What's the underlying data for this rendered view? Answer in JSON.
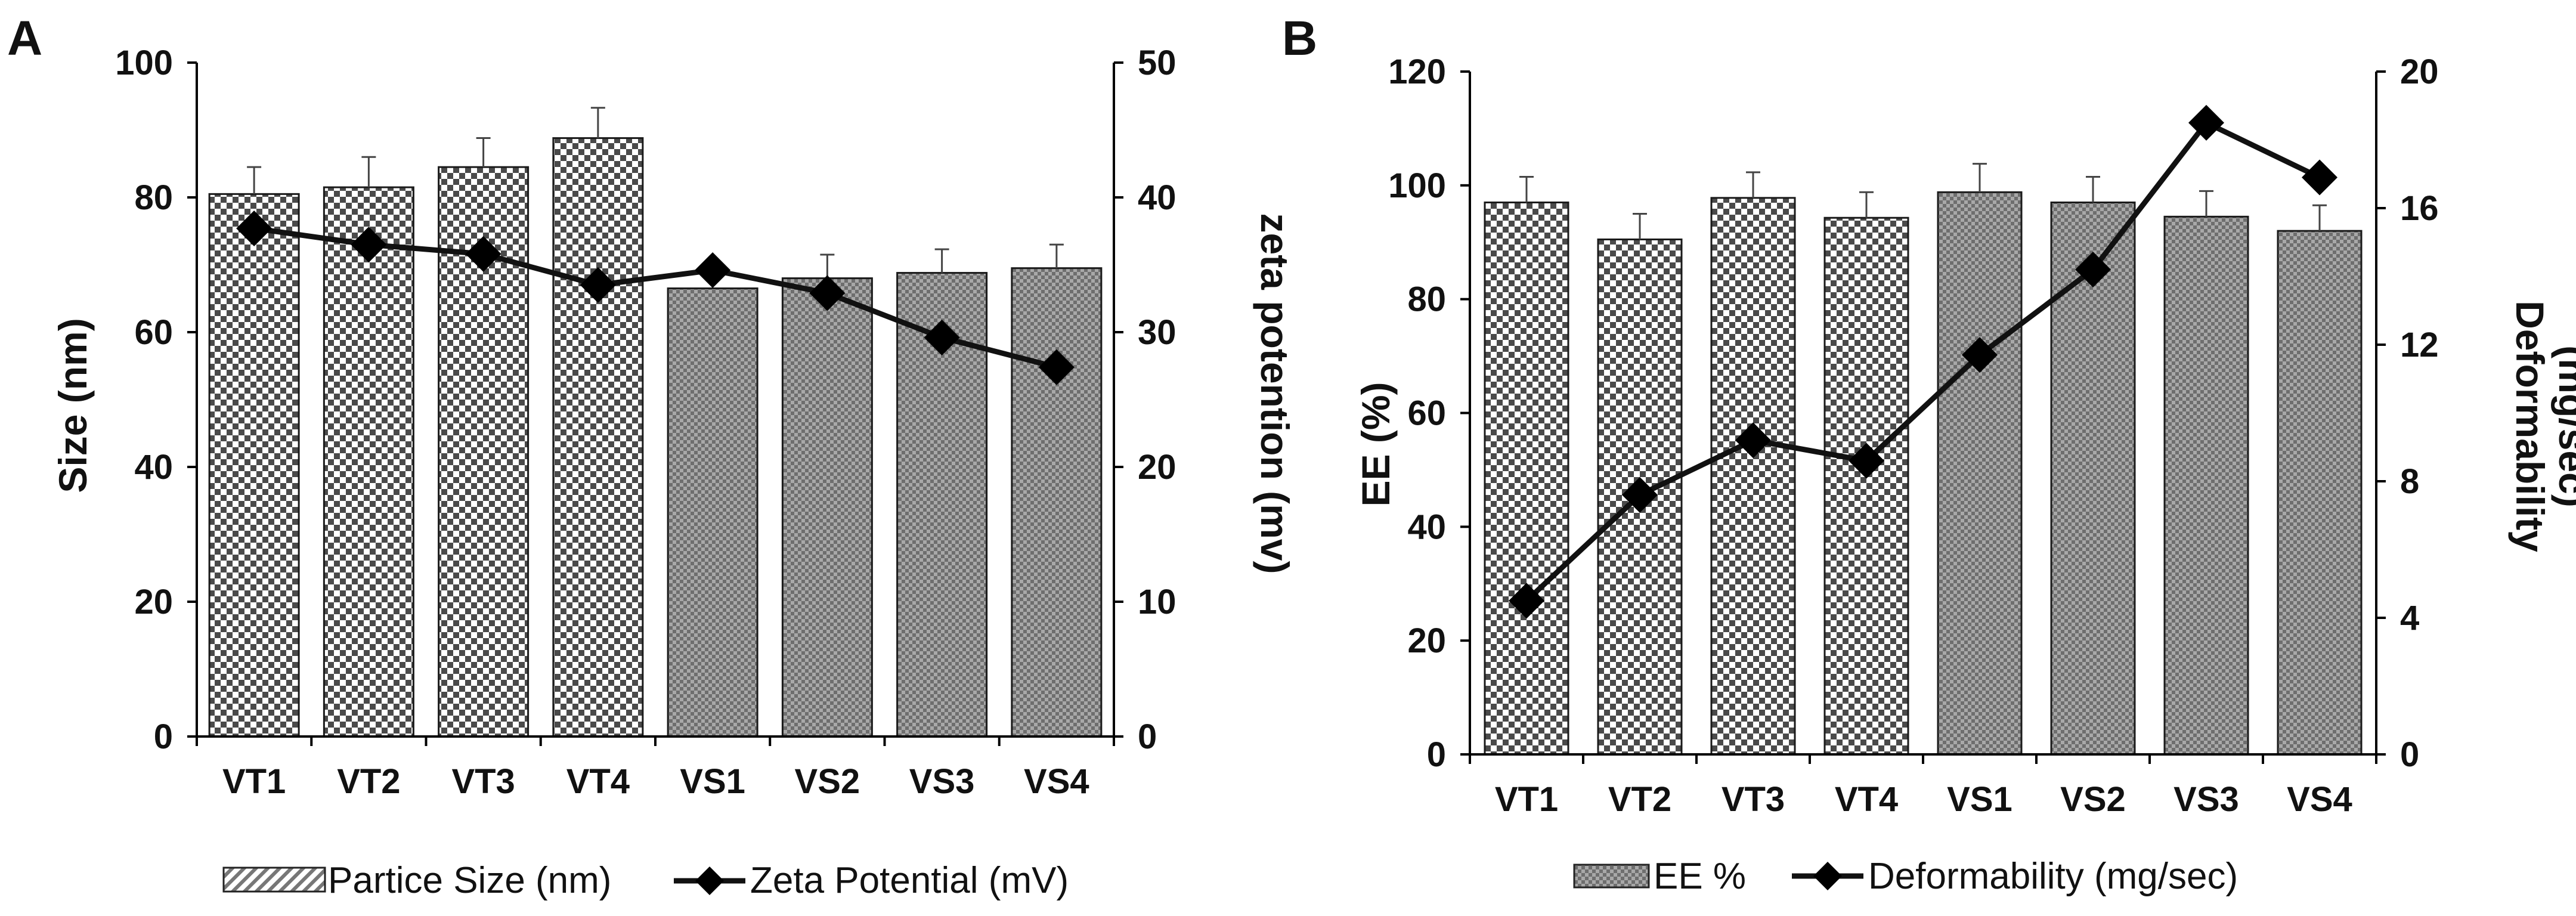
{
  "chart_data": [
    {
      "type": "bar",
      "panel_label": "A",
      "categories": [
        "VT1",
        "VT2",
        "VT3",
        "VT4",
        "VS1",
        "VS2",
        "VS3",
        "VS4"
      ],
      "series": [
        {
          "name": "Partice Size (nm)",
          "kind": "bar",
          "axis": "left",
          "values": [
            80.5,
            81.5,
            84.5,
            88.8,
            66.5,
            68,
            68.8,
            69.5
          ],
          "errors": [
            4,
            4.5,
            4.3,
            4.5,
            0,
            3.5,
            3.5,
            3.5
          ]
        },
        {
          "name": "Zeta Potential (mV)",
          "kind": "line",
          "axis": "right",
          "values": [
            37.7,
            36.5,
            35.8,
            33.5,
            34.6,
            32.9,
            29.6,
            27.4
          ]
        }
      ],
      "ylabel": "Size  (nm)",
      "ylim": [
        0,
        100
      ],
      "yticks": [
        0,
        20,
        40,
        60,
        80,
        100
      ],
      "y2label": "zeta  potention (mv)",
      "y2lim": [
        0,
        50
      ],
      "y2ticks": [
        0,
        10,
        20,
        30,
        40,
        50
      ],
      "legend": [
        "Partice Size (nm)",
        "Zeta Potential (mV)"
      ],
      "legend_position": "bottom",
      "grid": false
    },
    {
      "type": "bar",
      "panel_label": "B",
      "categories": [
        "VT1",
        "VT2",
        "VT3",
        "VT4",
        "VS1",
        "VS2",
        "VS3",
        "VS4"
      ],
      "series": [
        {
          "name": "EE %",
          "kind": "bar",
          "axis": "left",
          "values": [
            97,
            90.5,
            97.8,
            94.3,
            98.8,
            97,
            94.5,
            92
          ],
          "errors": [
            4.5,
            4.5,
            4.5,
            4.5,
            5,
            4.5,
            4.5,
            4.5
          ]
        },
        {
          "name": "Deformability (mg/sec)",
          "kind": "line",
          "axis": "right",
          "values": [
            4.5,
            7.6,
            9.2,
            8.6,
            11.7,
            14.2,
            18.5,
            16.9
          ]
        }
      ],
      "ylabel": "EE (%)",
      "ylim": [
        0,
        120
      ],
      "yticks": [
        0,
        20,
        40,
        60,
        80,
        100,
        120
      ],
      "y2label_lines": [
        "Deformability",
        "(mg/sec)"
      ],
      "y2lim": [
        0,
        20
      ],
      "y2ticks": [
        0,
        4,
        8,
        12,
        16,
        20
      ],
      "legend": [
        "EE %",
        "Deformability (mg/sec)"
      ],
      "legend_position": "bottom",
      "grid": false
    }
  ]
}
